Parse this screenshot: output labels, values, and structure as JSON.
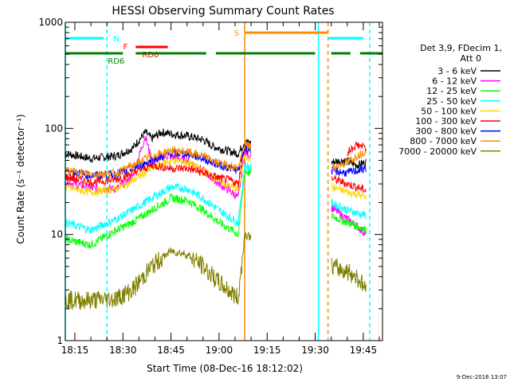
{
  "chart_data": {
    "type": "line",
    "title": "HESSI Observing Summary Count Rates",
    "xlabel": "Start Time (08-Dec-16 18:12:02)",
    "ylabel": "Count Rate (s⁻¹ detector⁻¹)",
    "y_scale": "log",
    "ylim": [
      1,
      1000
    ],
    "xlim": [
      "18:12:02",
      "19:51:00"
    ],
    "x_ticks": [
      "18:15",
      "18:30",
      "18:45",
      "19:00",
      "19:15",
      "19:30",
      "19:45"
    ],
    "y_ticks": [
      "1",
      "10",
      "100",
      "1000"
    ],
    "timestamp": "9-Dec-2016 13:07",
    "legend_header": [
      "Det 3,9, FDecim 1,",
      "Att 0"
    ],
    "legend_position": "right",
    "series": [
      {
        "name": "3 - 6 keV",
        "color": "#000000",
        "data": [
          [
            "18:12",
            58
          ],
          [
            "18:20",
            52
          ],
          [
            "18:28",
            55
          ],
          [
            "18:33",
            65
          ],
          [
            "18:37",
            92
          ],
          [
            "18:39",
            80
          ],
          [
            "18:42",
            92
          ],
          [
            "18:46",
            88
          ],
          [
            "18:50",
            85
          ],
          [
            "18:55",
            78
          ],
          [
            "18:58",
            68
          ],
          [
            "19:02",
            62
          ],
          [
            "19:06",
            58
          ],
          [
            "19:08",
            75
          ],
          [
            "19:35",
            48
          ],
          [
            "19:39",
            50
          ],
          [
            "19:43",
            45
          ],
          [
            "19:46",
            48
          ]
        ]
      },
      {
        "name": "6 - 12 keV",
        "color": "#ff00ff",
        "data": [
          [
            "18:12",
            32
          ],
          [
            "18:20",
            27
          ],
          [
            "18:28",
            27
          ],
          [
            "18:33",
            35
          ],
          [
            "18:37",
            85
          ],
          [
            "18:39",
            50
          ],
          [
            "18:44",
            55
          ],
          [
            "18:50",
            50
          ],
          [
            "18:55",
            40
          ],
          [
            "19:00",
            30
          ],
          [
            "19:04",
            25
          ],
          [
            "19:06",
            22
          ],
          [
            "19:08",
            60
          ],
          [
            "19:35",
            18
          ],
          [
            "19:40",
            14
          ],
          [
            "19:43",
            12
          ],
          [
            "19:46",
            10
          ]
        ]
      },
      {
        "name": "12 - 25 keV",
        "color": "#00ff00",
        "data": [
          [
            "18:12",
            9
          ],
          [
            "18:20",
            8
          ],
          [
            "18:28",
            11
          ],
          [
            "18:33",
            13
          ],
          [
            "18:39",
            17
          ],
          [
            "18:45",
            22
          ],
          [
            "18:50",
            21
          ],
          [
            "18:55",
            17
          ],
          [
            "19:00",
            13
          ],
          [
            "19:04",
            11
          ],
          [
            "19:06",
            10
          ],
          [
            "19:08",
            40
          ],
          [
            "19:35",
            15
          ],
          [
            "19:40",
            13
          ],
          [
            "19:43",
            12
          ],
          [
            "19:46",
            11
          ]
        ]
      },
      {
        "name": "25 - 50 keV",
        "color": "#00ffff",
        "data": [
          [
            "18:12",
            13
          ],
          [
            "18:20",
            11
          ],
          [
            "18:28",
            14
          ],
          [
            "18:33",
            17
          ],
          [
            "18:39",
            22
          ],
          [
            "18:45",
            28
          ],
          [
            "18:50",
            27
          ],
          [
            "18:55",
            22
          ],
          [
            "19:00",
            17
          ],
          [
            "19:04",
            14
          ],
          [
            "19:06",
            13
          ],
          [
            "19:08",
            45
          ],
          [
            "19:35",
            20
          ],
          [
            "19:40",
            17
          ],
          [
            "19:43",
            16
          ],
          [
            "19:46",
            15
          ]
        ]
      },
      {
        "name": "50 - 100 keV",
        "color": "#ffd700",
        "data": [
          [
            "18:12",
            28
          ],
          [
            "18:20",
            25
          ],
          [
            "18:28",
            27
          ],
          [
            "18:33",
            32
          ],
          [
            "18:39",
            42
          ],
          [
            "18:45",
            50
          ],
          [
            "18:50",
            48
          ],
          [
            "18:55",
            40
          ],
          [
            "19:00",
            32
          ],
          [
            "19:04",
            28
          ],
          [
            "19:06",
            26
          ],
          [
            "19:08",
            55
          ],
          [
            "19:35",
            28
          ],
          [
            "19:40",
            25
          ],
          [
            "19:43",
            24
          ],
          [
            "19:46",
            22
          ]
        ]
      },
      {
        "name": "100 - 300 keV",
        "color": "#ff0000",
        "data": [
          [
            "18:12",
            35
          ],
          [
            "18:20",
            31
          ],
          [
            "18:28",
            33
          ],
          [
            "18:33",
            38
          ],
          [
            "18:39",
            45
          ],
          [
            "18:45",
            42
          ],
          [
            "18:50",
            42
          ],
          [
            "18:55",
            38
          ],
          [
            "19:00",
            34
          ],
          [
            "19:04",
            32
          ],
          [
            "19:06",
            30
          ],
          [
            "19:08",
            70
          ],
          [
            "19:35",
            34
          ],
          [
            "19:40",
            30
          ],
          [
            "19:43",
            28
          ],
          [
            "19:46",
            26
          ]
        ]
      },
      {
        "name": "300 - 800 keV",
        "color": "#0000ff",
        "data": [
          [
            "18:12",
            40
          ],
          [
            "18:20",
            36
          ],
          [
            "18:28",
            37
          ],
          [
            "18:33",
            42
          ],
          [
            "18:39",
            50
          ],
          [
            "18:45",
            58
          ],
          [
            "18:50",
            58
          ],
          [
            "18:55",
            52
          ],
          [
            "19:00",
            45
          ],
          [
            "19:04",
            42
          ],
          [
            "19:06",
            40
          ],
          [
            "19:08",
            65
          ],
          [
            "19:35",
            40
          ],
          [
            "19:40",
            38
          ],
          [
            "19:43",
            40
          ],
          [
            "19:46",
            42
          ]
        ]
      },
      {
        "name": "800 - 7000 keV",
        "color": "#ff8c00",
        "data": [
          [
            "18:12",
            40
          ],
          [
            "18:20",
            37
          ],
          [
            "18:28",
            38
          ],
          [
            "18:33",
            45
          ],
          [
            "18:39",
            55
          ],
          [
            "18:45",
            62
          ],
          [
            "18:50",
            60
          ],
          [
            "18:55",
            55
          ],
          [
            "19:00",
            47
          ],
          [
            "19:04",
            44
          ],
          [
            "19:06",
            42
          ],
          [
            "19:08",
            70
          ],
          [
            "19:35",
            42
          ],
          [
            "19:40",
            48
          ],
          [
            "19:43",
            55
          ],
          [
            "19:46",
            62
          ]
        ]
      },
      {
        "name": "7000 - 20000 keV",
        "color": "#808000",
        "data": [
          [
            "18:12",
            2.4
          ],
          [
            "18:20",
            2.4
          ],
          [
            "18:28",
            2.5
          ],
          [
            "18:33",
            3
          ],
          [
            "18:39",
            5
          ],
          [
            "18:45",
            7
          ],
          [
            "18:50",
            6.5
          ],
          [
            "18:55",
            5
          ],
          [
            "19:00",
            3.5
          ],
          [
            "19:04",
            2.8
          ],
          [
            "19:06",
            2.5
          ],
          [
            "19:08",
            10
          ],
          [
            "19:35",
            5
          ],
          [
            "19:40",
            4.5
          ],
          [
            "19:43",
            4
          ],
          [
            "19:46",
            3
          ]
        ]
      },
      {
        "name": "",
        "color": "#ff0000",
        "data": [
          [
            "19:40",
            60
          ],
          [
            "19:43",
            70
          ],
          [
            "19:46",
            65
          ]
        ]
      }
    ],
    "flags": [
      {
        "label": "N",
        "color": "#00ffff",
        "segments": [
          [
            "18:12",
            "18:24"
          ],
          [
            "19:34",
            "19:45"
          ]
        ]
      },
      {
        "label": "F",
        "color": "#ff0000",
        "segments": [
          [
            "18:34",
            "18:44"
          ]
        ]
      },
      {
        "label": "RD0",
        "color": "#ff0000",
        "segments": [
          [
            "18:34",
            "18:44"
          ]
        ]
      },
      {
        "label": "RD6",
        "color": "#008000",
        "segments": [
          [
            "18:12",
            "18:30"
          ],
          [
            "18:34",
            "18:56"
          ],
          [
            "18:59",
            "19:30"
          ],
          [
            "19:35",
            "19:41"
          ],
          [
            "19:44",
            "19:51"
          ]
        ]
      },
      {
        "label": "S",
        "color": "#ff8c00",
        "segments": [
          [
            "19:08",
            "19:34"
          ]
        ]
      }
    ],
    "vertical_lines": [
      {
        "time": "18:12",
        "color": "#00ffff",
        "style": "solid"
      },
      {
        "time": "18:25",
        "color": "#00ffff",
        "style": "dashed"
      },
      {
        "time": "19:08",
        "color": "#ff8c00",
        "style": "solid"
      },
      {
        "time": "19:31",
        "color": "#00ffff",
        "style": "solid"
      },
      {
        "time": "19:34",
        "color": "#ff8c00",
        "style": "dashed"
      },
      {
        "time": "19:47",
        "color": "#00ffff",
        "style": "dashed"
      }
    ],
    "data_gaps": [
      [
        "19:10",
        "19:35"
      ]
    ],
    "grid": false
  }
}
